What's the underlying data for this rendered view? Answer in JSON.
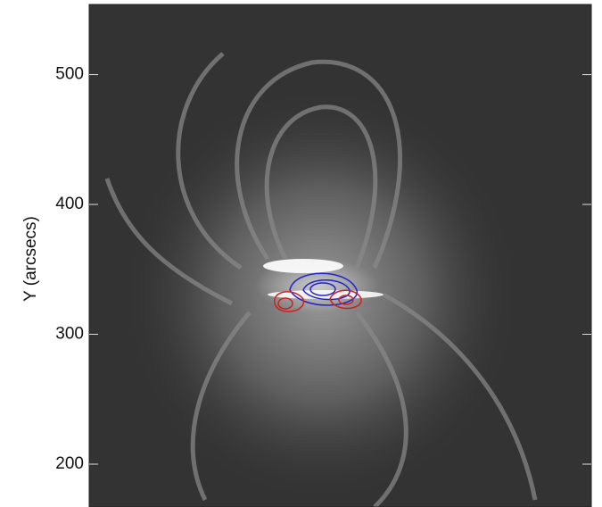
{
  "chart_data": {
    "type": "image",
    "ylabel": "Y (arcsecs)",
    "ylim": [
      167,
      554
    ],
    "yticks": [
      200,
      300,
      400,
      500
    ]
  }
}
